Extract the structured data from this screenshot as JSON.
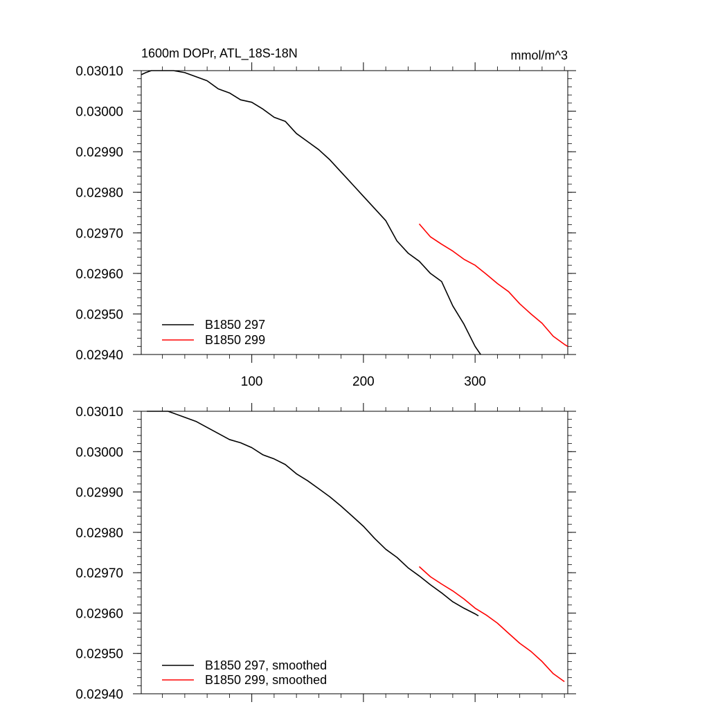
{
  "chart_data": [
    {
      "type": "line",
      "title_left": "1600m DOPr, ATL_18S-18N",
      "title_right": "mmol/m^3",
      "xlabel": "",
      "ylabel": "",
      "xlim": [
        1,
        383
      ],
      "ylim": [
        0.0294,
        0.0301
      ],
      "x_ticks": [
        100,
        200,
        300
      ],
      "x_tick_labels": [
        "100",
        "200",
        "300"
      ],
      "y_ticks": [
        0.0294,
        0.0295,
        0.0296,
        0.0297,
        0.0298,
        0.0299,
        0.03,
        0.0301
      ],
      "y_tick_labels": [
        "0.02940",
        "0.02950",
        "0.02960",
        "0.02970",
        "0.02980",
        "0.02990",
        "0.03000",
        "0.03010"
      ],
      "legend_position": "bottom-left",
      "series": [
        {
          "name": "B1850 297",
          "color": "#000000",
          "x": [
            1,
            5,
            10,
            20,
            30,
            40,
            50,
            60,
            70,
            80,
            90,
            100,
            110,
            120,
            130,
            140,
            150,
            160,
            170,
            180,
            190,
            200,
            210,
            220,
            230,
            240,
            250,
            260,
            270,
            280,
            290,
            300,
            305
          ],
          "y": [
            0.03009,
            0.030095,
            0.0301,
            0.0301,
            0.0301,
            0.030095,
            0.030085,
            0.030075,
            0.030055,
            0.030045,
            0.030028,
            0.030022,
            0.030005,
            0.029985,
            0.029975,
            0.029945,
            0.029925,
            0.029905,
            0.02988,
            0.02985,
            0.02982,
            0.02979,
            0.02976,
            0.02973,
            0.02968,
            0.02965,
            0.02963,
            0.0296,
            0.02958,
            0.02952,
            0.029475,
            0.02942,
            0.0294
          ]
        },
        {
          "name": "B1850 299",
          "color": "#ff0000",
          "x": [
            250,
            260,
            270,
            280,
            290,
            300,
            310,
            320,
            330,
            340,
            350,
            360,
            370,
            380,
            383
          ],
          "y": [
            0.029722,
            0.02969,
            0.029672,
            0.029655,
            0.029635,
            0.02962,
            0.029598,
            0.029575,
            0.029555,
            0.029525,
            0.0295,
            0.029477,
            0.029445,
            0.029425,
            0.02942
          ]
        }
      ]
    },
    {
      "type": "line",
      "xlabel": "",
      "ylabel": "",
      "xlim": [
        1,
        383
      ],
      "ylim": [
        0.0294,
        0.0301
      ],
      "x_ticks": [
        100,
        200,
        300
      ],
      "y_ticks": [
        0.0294,
        0.0295,
        0.0296,
        0.0297,
        0.0298,
        0.0299,
        0.03,
        0.0301
      ],
      "y_tick_labels": [
        "0.02940",
        "0.02950",
        "0.02960",
        "0.02970",
        "0.02980",
        "0.02990",
        "0.03000",
        "0.03010"
      ],
      "legend_position": "bottom-left",
      "series": [
        {
          "name": "B1850 297, smoothed",
          "color": "#000000",
          "x": [
            6,
            15,
            25,
            30,
            40,
            50,
            60,
            70,
            80,
            90,
            100,
            110,
            120,
            130,
            140,
            150,
            160,
            170,
            180,
            190,
            200,
            210,
            220,
            230,
            240,
            250,
            260,
            270,
            280,
            290,
            300,
            303
          ],
          "y": [
            0.0301,
            0.0301,
            0.0301,
            0.030095,
            0.030085,
            0.030075,
            0.03006,
            0.030045,
            0.03003,
            0.030022,
            0.03001,
            0.029992,
            0.029982,
            0.029968,
            0.029945,
            0.029928,
            0.029908,
            0.029888,
            0.029865,
            0.02984,
            0.029815,
            0.029785,
            0.029758,
            0.029738,
            0.029712,
            0.029692,
            0.02967,
            0.02965,
            0.029628,
            0.029612,
            0.029598,
            0.029593
          ]
        },
        {
          "name": "B1850 299, smoothed",
          "color": "#ff0000",
          "x": [
            250,
            260,
            270,
            280,
            290,
            300,
            310,
            320,
            330,
            340,
            350,
            360,
            370,
            380
          ],
          "y": [
            0.029715,
            0.02969,
            0.029672,
            0.029655,
            0.029635,
            0.029612,
            0.029595,
            0.029575,
            0.02955,
            0.029525,
            0.029505,
            0.02948,
            0.02945,
            0.02943
          ]
        }
      ]
    }
  ]
}
